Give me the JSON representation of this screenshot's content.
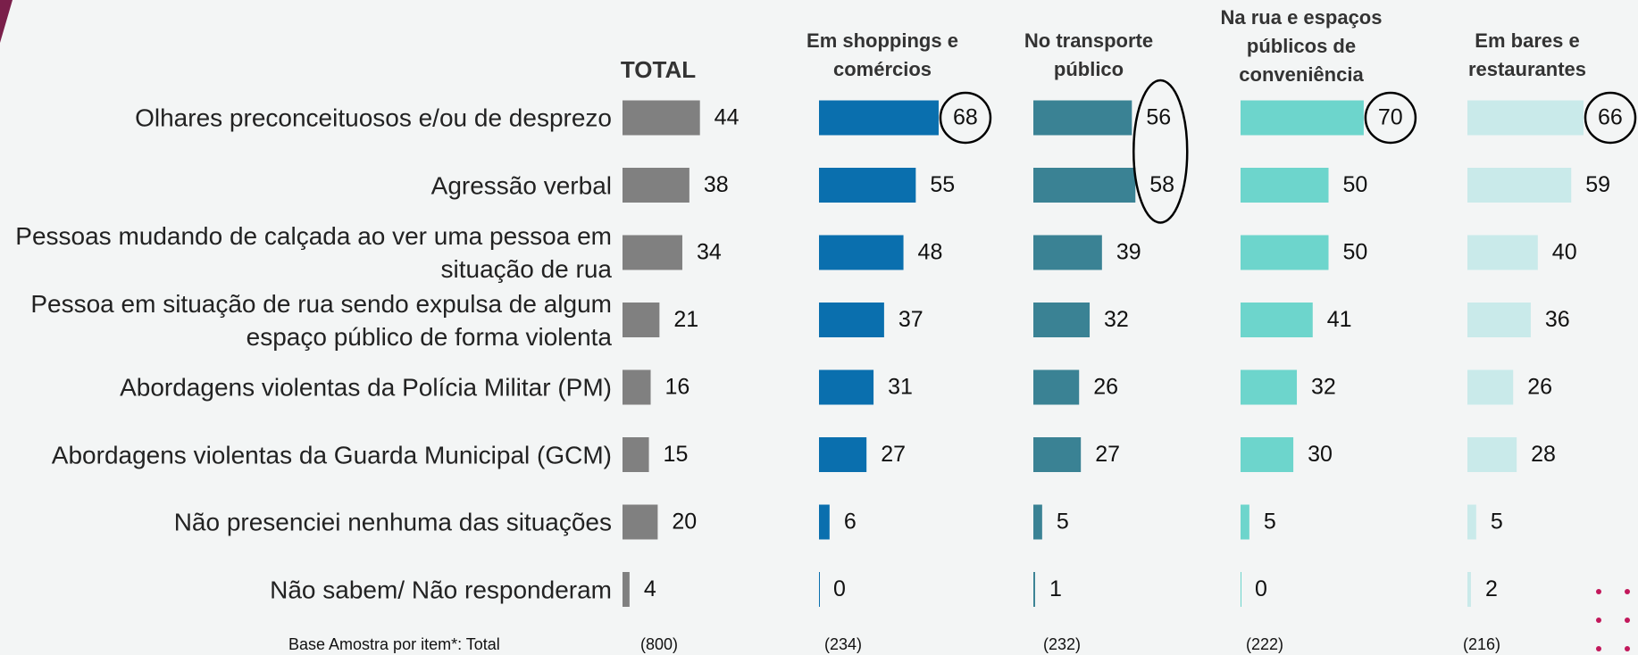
{
  "chart_data": {
    "type": "bar",
    "categories": [
      "Olhares preconceituosos e/ou de desprezo",
      "Agressão verbal",
      "Pessoas mudando de calçada ao ver uma pessoa em situação de rua",
      "Pessoa em situação de rua sendo expulsa de algum espaço público de forma violenta",
      "Abordagens violentas da Polícia Militar (PM)",
      "Abordagens violentas da Guarda Municipal (GCM)",
      "Não presenciei nenhuma das situações",
      "Não sabem/ Não responderam"
    ],
    "series": [
      {
        "name": "TOTAL",
        "color": "#808080",
        "values": [
          44,
          38,
          34,
          21,
          16,
          15,
          20,
          4
        ],
        "base": "(800)",
        "circled": []
      },
      {
        "name": "Em shoppings e comércios",
        "color": "#0a6fae",
        "values": [
          68,
          55,
          48,
          37,
          31,
          27,
          6,
          0
        ],
        "base": "(234)",
        "circled": [
          0
        ]
      },
      {
        "name": "No transporte público",
        "color": "#3a8294",
        "values": [
          56,
          58,
          39,
          32,
          26,
          27,
          5,
          1
        ],
        "base": "(232)",
        "circled": [
          0,
          1
        ]
      },
      {
        "name": "Na rua e espaços públicos de conveniência",
        "color": "#6dd5cc",
        "values": [
          70,
          50,
          50,
          41,
          32,
          30,
          5,
          0
        ],
        "base": "(222)",
        "circled": [
          0
        ]
      },
      {
        "name": "Em bares e restaurantes",
        "color": "#c9eaea",
        "values": [
          66,
          59,
          40,
          36,
          26,
          28,
          5,
          2
        ],
        "base": "(216)",
        "circled": [
          0
        ]
      }
    ],
    "footnote": "Base Amostra por item*: Total"
  }
}
